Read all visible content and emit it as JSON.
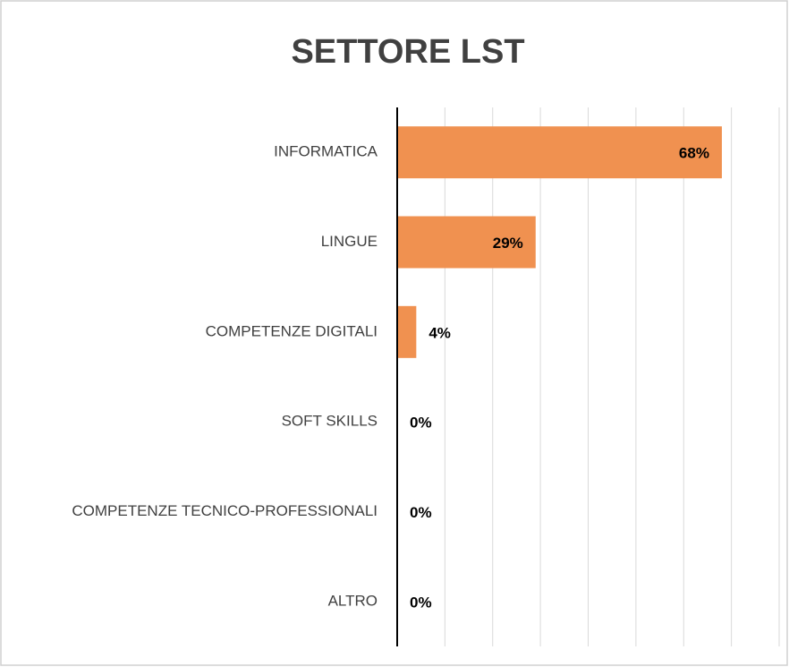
{
  "chart_data": {
    "type": "barh",
    "title": "SETTORE LST",
    "categories": [
      "INFORMATICA",
      "LINGUE",
      "COMPETENZE DIGITALI",
      "SOFT SKILLS",
      "COMPETENZE TECNICO-PROFESSIONALI",
      "ALTRO"
    ],
    "values": [
      68,
      29,
      4,
      0,
      0,
      0
    ],
    "value_labels": [
      "68%",
      "29%",
      "4%",
      "0%",
      "0%",
      "0%"
    ],
    "color": "#f09150",
    "xlim": [
      0,
      80
    ],
    "xticks": [
      0,
      10,
      20,
      30,
      40,
      50,
      60,
      70,
      80
    ],
    "grid": true
  }
}
